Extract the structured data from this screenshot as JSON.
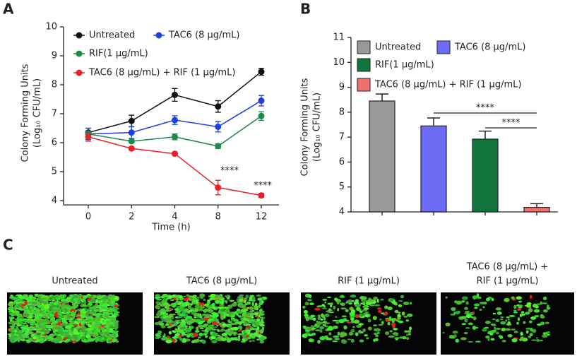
{
  "panels": [
    "A",
    "B",
    "C"
  ],
  "chart_data": [
    {
      "type": "line",
      "xlabel": "Time (h)",
      "ylabel": [
        "Colony Forming Units",
        "(Log₁₀ CFU/mL)"
      ],
      "categories": [
        "0",
        "2",
        "4",
        "8",
        "12"
      ],
      "ylim": [
        3.85,
        10
      ],
      "yticks": [
        4,
        5,
        6,
        7,
        8,
        9,
        10
      ],
      "series": [
        {
          "name": "Untreated",
          "color": "#111111",
          "values": [
            6.35,
            6.75,
            7.65,
            7.25,
            8.45
          ],
          "errors": [
            0.15,
            0.2,
            0.22,
            0.2,
            0.12
          ]
        },
        {
          "name": "TAC6 (8 μg/mL)",
          "color": "#1f3fe0",
          "values": [
            6.3,
            6.35,
            6.78,
            6.55,
            7.45
          ],
          "errors": [
            0.2,
            0.2,
            0.15,
            0.18,
            0.18
          ]
        },
        {
          "name": "RIF(1 μg/mL)",
          "color": "#1e8a4a",
          "values": [
            6.3,
            6.05,
            6.2,
            5.88,
            6.92
          ],
          "errors": [
            0.1,
            0.05,
            0.1,
            0.08,
            0.15
          ]
        },
        {
          "name": "TAC6 (8 μg/mL) + RIF (1 μg/mL)",
          "color": "#e8202a",
          "values": [
            6.2,
            5.8,
            5.62,
            4.45,
            4.18
          ],
          "errors": [
            0.15,
            0.05,
            0.05,
            0.25,
            0.07
          ]
        }
      ],
      "annotations": [
        "****",
        "****"
      ]
    },
    {
      "type": "bar",
      "ylabel": [
        "Colony Forming Units",
        "(Log₁₀ CFU/mL)"
      ],
      "categories": [
        "Untreated",
        "TAC6 (8 μg/mL)",
        "RIF(1 μg/mL)",
        "TAC6 (8 μg/mL) + RIF (1 μg/mL)"
      ],
      "colors": [
        "#999999",
        "#6b6bf5",
        "#12753c",
        "#f07070"
      ],
      "values": [
        8.45,
        7.45,
        6.92,
        4.18
      ],
      "errors": [
        0.28,
        0.32,
        0.32,
        0.15
      ],
      "ylim": [
        4,
        11
      ],
      "yticks": [
        4,
        5,
        6,
        7,
        8,
        9,
        10,
        11
      ],
      "annotations": [
        "****",
        "****"
      ]
    }
  ],
  "images": [
    {
      "label": "Untreated"
    },
    {
      "label": "TAC6 (8 μg/mL)"
    },
    {
      "label": "RIF (1 μg/mL)"
    },
    {
      "label": [
        "TAC6 (8 μg/mL) +",
        "RIF (1 μg/mL)"
      ]
    }
  ]
}
